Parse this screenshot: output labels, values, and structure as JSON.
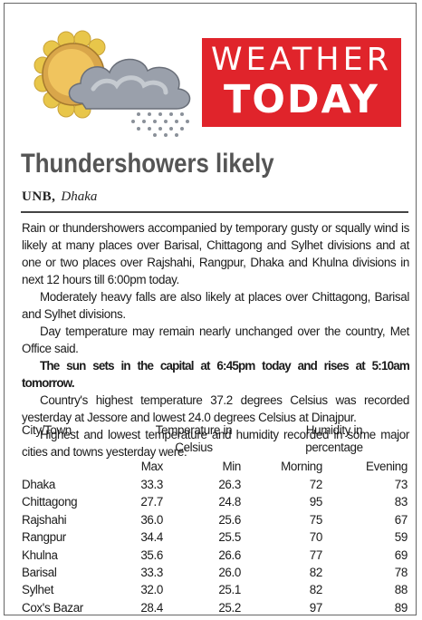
{
  "banner": {
    "line1": "WEATHER",
    "line2": "TODAY"
  },
  "article": {
    "headline": "Thundershowers likely",
    "agency": "UNB,",
    "city": "Dhaka",
    "paragraphs": [
      "Rain or thundershowers accompanied by temporary gusty or squally wind is likely at many places over Barisal, Chittagong and Sylhet divisions and at one or two places over Rajshahi, Rangpur, Dhaka and Khulna divisions in next 12 hours till 6:00pm today.",
      "Moderately heavy falls are also likely at places over Chittagong, Barisal and Sylhet divisions.",
      "Day temperature may remain nearly unchanged over the country, Met Office said.",
      "The sun sets in the capital at 6:45pm today and rises at 5:10am tomorrow.",
      "Country's highest temperature 37.2 degrees Celsius was recorded yesterday at Jessore and lowest 24.0 degrees Celsius at Dinajpur.",
      "Highest and lowest temperature and humidity recorded in some major cities and towns yesterday were:"
    ]
  },
  "table": {
    "col_city": "City/Town",
    "group_temp_line1": "Temperature in",
    "group_temp_line2": "Celsius",
    "group_hum_line1": "Humidity in",
    "group_hum_line2": "percentage",
    "sub_max": "Max",
    "sub_min": "Min",
    "sub_morning": "Morning",
    "sub_evening": "Evening",
    "rows": [
      {
        "city": "Dhaka",
        "max": "33.3",
        "min": "26.3",
        "morning": "72",
        "evening": "73"
      },
      {
        "city": "Chittagong",
        "max": "27.7",
        "min": "24.8",
        "morning": "95",
        "evening": "83"
      },
      {
        "city": "Rajshahi",
        "max": "36.0",
        "min": "25.6",
        "morning": "75",
        "evening": "67"
      },
      {
        "city": "Rangpur",
        "max": "34.4",
        "min": "25.5",
        "morning": "70",
        "evening": "59"
      },
      {
        "city": "Khulna",
        "max": "35.6",
        "min": "26.6",
        "morning": "77",
        "evening": "69"
      },
      {
        "city": "Barisal",
        "max": "33.3",
        "min": "26.0",
        "morning": "82",
        "evening": "78"
      },
      {
        "city": "Sylhet",
        "max": "32.0",
        "min": "25.1",
        "morning": "82",
        "evening": "88"
      },
      {
        "city": "Cox's Bazar",
        "max": "28.4",
        "min": "25.2",
        "morning": "97",
        "evening": "89"
      }
    ]
  },
  "colors": {
    "banner_red": "#e0242b",
    "headline_gray": "#555555",
    "sun_yellow": "#e8c64a",
    "cloud_gray": "#8a8f9a"
  },
  "icons": [
    "sun-icon",
    "cloud-icon",
    "rain-icon"
  ]
}
